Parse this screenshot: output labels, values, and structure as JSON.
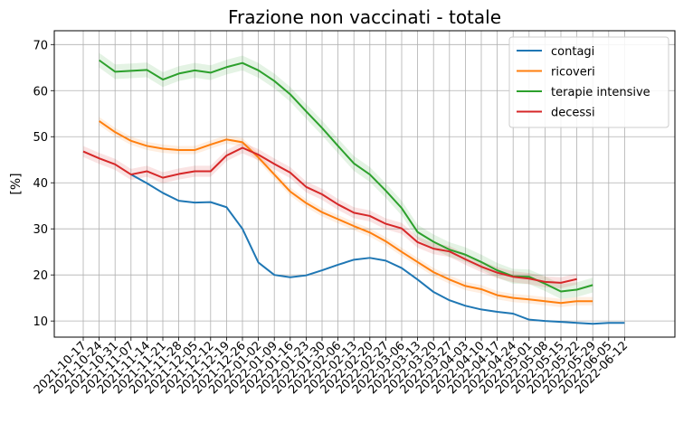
{
  "chart_data": {
    "type": "line",
    "title": "Frazione non vaccinati - totale",
    "xlabel": "",
    "ylabel": "[%]",
    "ylim": [
      6.5,
      73
    ],
    "yticks": [
      10,
      20,
      30,
      40,
      50,
      60,
      70
    ],
    "grid": true,
    "legend_position": "top-right",
    "categories": [
      "2021-10-17",
      "2021-10-24",
      "2021-10-31",
      "2021-11-07",
      "2021-11-14",
      "2021-11-21",
      "2021-11-28",
      "2021-12-05",
      "2021-12-12",
      "2021-12-19",
      "2021-12-26",
      "2022-01-02",
      "2022-01-09",
      "2022-01-16",
      "2022-01-23",
      "2022-01-30",
      "2022-02-06",
      "2022-02-13",
      "2022-02-20",
      "2022-02-27",
      "2022-03-06",
      "2022-03-13",
      "2022-03-20",
      "2022-03-27",
      "2022-04-03",
      "2022-04-10",
      "2022-04-17",
      "2022-04-24",
      "2022-05-01",
      "2022-05-08",
      "2022-05-15",
      "2022-05-22",
      "2022-05-29",
      "2022-06-05",
      "2022-06-12"
    ],
    "series": [
      {
        "name": "contagi",
        "color": "#1f77b4",
        "values": [
          null,
          null,
          null,
          41.8,
          39.9,
          37.8,
          36.1,
          35.7,
          35.8,
          34.7,
          30.0,
          22.7,
          20.0,
          19.5,
          19.9,
          21.0,
          22.2,
          23.3,
          23.7,
          23.1,
          21.5,
          19.0,
          16.3,
          14.5,
          13.3,
          12.5,
          12.0,
          11.6,
          10.3,
          10.0,
          9.8,
          9.6,
          9.4,
          9.6,
          9.6
        ],
        "band": null
      },
      {
        "name": "ricoveri",
        "color": "#ff7f0e",
        "values": [
          null,
          53.4,
          51.0,
          49.1,
          48.0,
          47.4,
          47.1,
          47.1,
          48.3,
          49.4,
          48.8,
          45.5,
          41.8,
          38.1,
          35.6,
          33.6,
          32.1,
          30.6,
          29.2,
          27.3,
          25.0,
          22.8,
          20.6,
          19.0,
          17.6,
          16.9,
          15.6,
          15.0,
          14.7,
          14.3,
          13.9,
          14.3,
          14.3,
          null,
          null
        ],
        "band": 0.9
      },
      {
        "name": "terapie intensive",
        "color": "#2ca02c",
        "values": [
          null,
          66.6,
          64.1,
          64.3,
          64.5,
          62.4,
          63.7,
          64.4,
          63.9,
          65.1,
          66.0,
          64.4,
          62.1,
          59.2,
          55.5,
          51.9,
          48.0,
          44.2,
          41.8,
          38.3,
          34.5,
          29.3,
          27.2,
          25.5,
          24.4,
          22.8,
          21.0,
          19.7,
          19.6,
          18.1,
          16.4,
          16.8,
          17.8,
          null,
          null
        ],
        "band": 1.6
      },
      {
        "name": "decessi",
        "color": "#d62728",
        "values": [
          46.8,
          45.3,
          44.0,
          41.8,
          42.5,
          41.1,
          41.9,
          42.5,
          42.5,
          45.9,
          47.6,
          46.1,
          44.1,
          42.2,
          39.1,
          37.5,
          35.3,
          33.5,
          32.8,
          31.1,
          30.1,
          27.1,
          25.7,
          25.1,
          23.4,
          21.8,
          20.5,
          19.6,
          19.2,
          18.5,
          18.3,
          19.1,
          null,
          null,
          null
        ],
        "band": 1.2
      }
    ]
  }
}
